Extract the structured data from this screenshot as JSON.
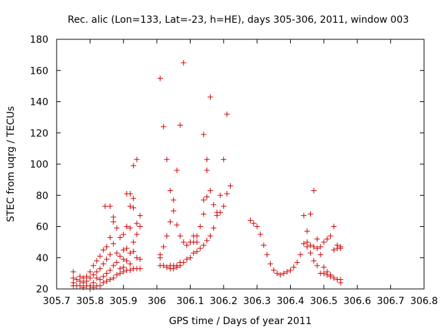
{
  "chart_data": {
    "type": "scatter",
    "title": "Rec. alic (Lon=133, Lat=-23, h=HE), days 305-306, 2011, window 003",
    "xlabel": "GPS time / Days of year 2011",
    "ylabel": "STEC from uqrg / TECUs",
    "xlim": [
      305.7,
      306.8
    ],
    "ylim": [
      20,
      180
    ],
    "x_ticks": [
      305.7,
      305.8,
      305.9,
      306.0,
      306.1,
      306.2,
      306.3,
      306.4,
      306.5,
      306.6,
      306.7,
      306.8
    ],
    "x_tick_labels": [
      "305.7",
      "305.8",
      "305.9",
      "306",
      "306.1",
      "306.2",
      "306.3",
      "306.4",
      "306.5",
      "306.6",
      "306.7",
      "306.8"
    ],
    "y_ticks": [
      20,
      40,
      60,
      80,
      100,
      120,
      140,
      160,
      180
    ],
    "y_tick_labels": [
      "20",
      "40",
      "60",
      "80",
      "100",
      "120",
      "140",
      "160",
      "180"
    ],
    "marker": "+",
    "color": "#cc0000",
    "grid": false,
    "series": [
      {
        "name": "",
        "points": [
          [
            305.75,
            31
          ],
          [
            305.75,
            27
          ],
          [
            305.75,
            24
          ],
          [
            305.75,
            22
          ],
          [
            305.76,
            26
          ],
          [
            305.76,
            22
          ],
          [
            305.77,
            28
          ],
          [
            305.77,
            25
          ],
          [
            305.77,
            22
          ],
          [
            305.78,
            27
          ],
          [
            305.78,
            24
          ],
          [
            305.78,
            21
          ],
          [
            305.79,
            28
          ],
          [
            305.79,
            25
          ],
          [
            305.79,
            22
          ],
          [
            305.8,
            31
          ],
          [
            305.8,
            27
          ],
          [
            305.8,
            22
          ],
          [
            305.8,
            20
          ],
          [
            305.81,
            35
          ],
          [
            305.81,
            29
          ],
          [
            305.81,
            24
          ],
          [
            305.81,
            21
          ],
          [
            305.82,
            38
          ],
          [
            305.82,
            31
          ],
          [
            305.82,
            27
          ],
          [
            305.82,
            22
          ],
          [
            305.83,
            41
          ],
          [
            305.83,
            33
          ],
          [
            305.83,
            26
          ],
          [
            305.83,
            22
          ],
          [
            305.84,
            45
          ],
          [
            305.84,
            36
          ],
          [
            305.84,
            28
          ],
          [
            305.84,
            24
          ],
          [
            305.845,
            73
          ],
          [
            305.85,
            47
          ],
          [
            305.85,
            39
          ],
          [
            305.85,
            30
          ],
          [
            305.85,
            25
          ],
          [
            305.86,
            73
          ],
          [
            305.86,
            53
          ],
          [
            305.86,
            42
          ],
          [
            305.86,
            32
          ],
          [
            305.86,
            26
          ],
          [
            305.87,
            66
          ],
          [
            305.87,
            63
          ],
          [
            305.87,
            49
          ],
          [
            305.87,
            35
          ],
          [
            305.87,
            27
          ],
          [
            305.88,
            59
          ],
          [
            305.88,
            43
          ],
          [
            305.88,
            37
          ],
          [
            305.88,
            29
          ],
          [
            305.89,
            53
          ],
          [
            305.89,
            41
          ],
          [
            305.89,
            33
          ],
          [
            305.89,
            30
          ],
          [
            305.9,
            55
          ],
          [
            305.9,
            45
          ],
          [
            305.9,
            39
          ],
          [
            305.9,
            34
          ],
          [
            305.9,
            31
          ],
          [
            305.91,
            81
          ],
          [
            305.91,
            60
          ],
          [
            305.91,
            46
          ],
          [
            305.91,
            38
          ],
          [
            305.91,
            32
          ],
          [
            305.92,
            81
          ],
          [
            305.92,
            73
          ],
          [
            305.92,
            59
          ],
          [
            305.92,
            43
          ],
          [
            305.92,
            36
          ],
          [
            305.92,
            32
          ],
          [
            305.93,
            99
          ],
          [
            305.93,
            78
          ],
          [
            305.93,
            72
          ],
          [
            305.93,
            50
          ],
          [
            305.93,
            44
          ],
          [
            305.93,
            33
          ],
          [
            305.94,
            103
          ],
          [
            305.94,
            62
          ],
          [
            305.94,
            55
          ],
          [
            305.94,
            40
          ],
          [
            305.94,
            33
          ],
          [
            305.95,
            67
          ],
          [
            305.95,
            60
          ],
          [
            305.95,
            39
          ],
          [
            305.95,
            33
          ],
          [
            306.01,
            155
          ],
          [
            306.01,
            42
          ],
          [
            306.01,
            40
          ],
          [
            306.01,
            35
          ],
          [
            306.02,
            124
          ],
          [
            306.02,
            47
          ],
          [
            306.02,
            35
          ],
          [
            306.03,
            103
          ],
          [
            306.03,
            54
          ],
          [
            306.03,
            34
          ],
          [
            306.04,
            83
          ],
          [
            306.04,
            63
          ],
          [
            306.04,
            35
          ],
          [
            306.04,
            33
          ],
          [
            306.05,
            77
          ],
          [
            306.05,
            70
          ],
          [
            306.05,
            35
          ],
          [
            306.05,
            33
          ],
          [
            306.06,
            96
          ],
          [
            306.06,
            61
          ],
          [
            306.06,
            35
          ],
          [
            306.06,
            34
          ],
          [
            306.07,
            125
          ],
          [
            306.07,
            54
          ],
          [
            306.07,
            37
          ],
          [
            306.07,
            35
          ],
          [
            306.08,
            165
          ],
          [
            306.08,
            50
          ],
          [
            306.08,
            37
          ],
          [
            306.09,
            48
          ],
          [
            306.09,
            39
          ],
          [
            306.1,
            50
          ],
          [
            306.1,
            40
          ],
          [
            306.11,
            54
          ],
          [
            306.11,
            50
          ],
          [
            306.11,
            43
          ],
          [
            306.12,
            54
          ],
          [
            306.12,
            50
          ],
          [
            306.12,
            44
          ],
          [
            306.13,
            60
          ],
          [
            306.13,
            46
          ],
          [
            306.14,
            119
          ],
          [
            306.14,
            77
          ],
          [
            306.14,
            68
          ],
          [
            306.14,
            48
          ],
          [
            306.15,
            103
          ],
          [
            306.15,
            96
          ],
          [
            306.15,
            79
          ],
          [
            306.15,
            51
          ],
          [
            306.16,
            143
          ],
          [
            306.16,
            83
          ],
          [
            306.16,
            54
          ],
          [
            306.17,
            74
          ],
          [
            306.17,
            59
          ],
          [
            306.18,
            69
          ],
          [
            306.18,
            67
          ],
          [
            306.19,
            80
          ],
          [
            306.19,
            69
          ],
          [
            306.2,
            103
          ],
          [
            306.2,
            73
          ],
          [
            306.21,
            132
          ],
          [
            306.21,
            81
          ],
          [
            306.22,
            86
          ],
          [
            306.28,
            64
          ],
          [
            306.29,
            62
          ],
          [
            306.3,
            60
          ],
          [
            306.31,
            55
          ],
          [
            306.32,
            48
          ],
          [
            306.33,
            42
          ],
          [
            306.34,
            36
          ],
          [
            306.35,
            32
          ],
          [
            306.36,
            30
          ],
          [
            306.37,
            29
          ],
          [
            306.38,
            30
          ],
          [
            306.39,
            31
          ],
          [
            306.4,
            32
          ],
          [
            306.41,
            34
          ],
          [
            306.42,
            37
          ],
          [
            306.43,
            42
          ],
          [
            306.44,
            67
          ],
          [
            306.44,
            49
          ],
          [
            306.45,
            57
          ],
          [
            306.45,
            50
          ],
          [
            306.45,
            47
          ],
          [
            306.46,
            68
          ],
          [
            306.46,
            48
          ],
          [
            306.46,
            43
          ],
          [
            306.47,
            83
          ],
          [
            306.47,
            47
          ],
          [
            306.47,
            38
          ],
          [
            306.48,
            52
          ],
          [
            306.48,
            46
          ],
          [
            306.48,
            35
          ],
          [
            306.49,
            47
          ],
          [
            306.49,
            42
          ],
          [
            306.49,
            30
          ],
          [
            306.5,
            50
          ],
          [
            306.5,
            34
          ],
          [
            306.5,
            30
          ],
          [
            306.51,
            52
          ],
          [
            306.51,
            31
          ],
          [
            306.51,
            29
          ],
          [
            306.52,
            54
          ],
          [
            306.52,
            29
          ],
          [
            306.52,
            28
          ],
          [
            306.53,
            60
          ],
          [
            306.53,
            45
          ],
          [
            306.53,
            27
          ],
          [
            306.54,
            48
          ],
          [
            306.54,
            46
          ],
          [
            306.54,
            26
          ],
          [
            306.55,
            47
          ],
          [
            306.55,
            46
          ],
          [
            306.55,
            26
          ],
          [
            306.55,
            24
          ]
        ]
      }
    ]
  }
}
